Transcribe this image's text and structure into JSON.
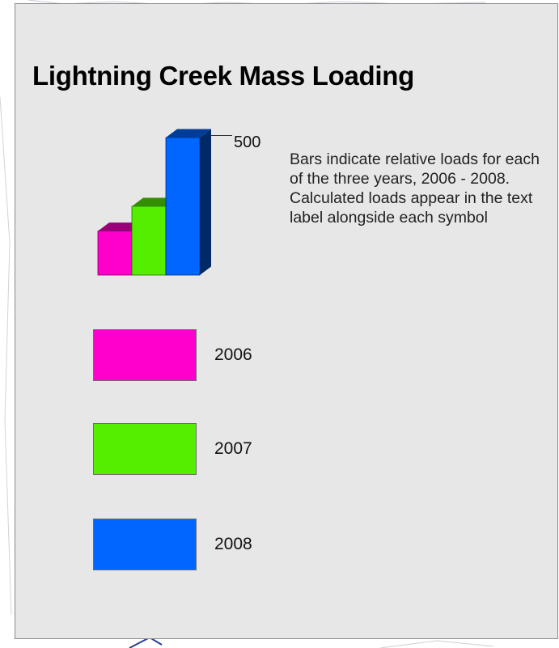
{
  "legend": {
    "title": "Lightning Creek Mass Loading",
    "note": "Bars indicate relative loads for each of the three years, 2006 - 2008. Calculated loads appear in the text label alongside each symbol",
    "scale_label": "500"
  },
  "chart_data": {
    "type": "bar",
    "categories": [
      "2006",
      "2007",
      "2008"
    ],
    "values": [
      160,
      250,
      500
    ],
    "colors": [
      "#ff00cc",
      "#55ee00",
      "#0066ff"
    ],
    "ylim": [
      0,
      500
    ]
  },
  "years": [
    {
      "label": "2006",
      "color": "#ff00cc"
    },
    {
      "label": "2007",
      "color": "#55ee00"
    },
    {
      "label": "2008",
      "color": "#0066ff"
    }
  ]
}
